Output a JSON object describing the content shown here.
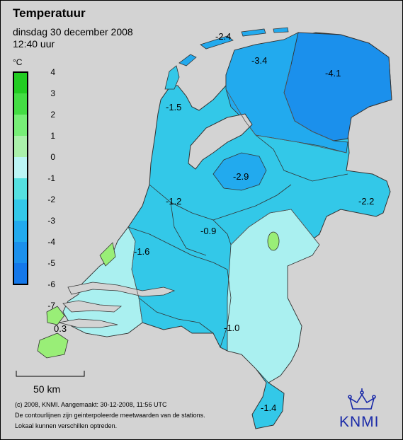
{
  "header": {
    "title": "Temperatuur",
    "date": "dinsdag 30 december 2008",
    "time": "12:40 uur"
  },
  "legend": {
    "unit": "°C",
    "ticks": [
      "4",
      "3",
      "2",
      "1",
      "0",
      "-1",
      "-2",
      "-3",
      "-4",
      "-5",
      "-6",
      "-7"
    ],
    "colors": [
      "#22cc22",
      "#44dd44",
      "#77ee77",
      "#aaf0aa",
      "#bbf5f5",
      "#55e0e0",
      "#33c8e8",
      "#22aaee",
      "#1b90ec",
      "#1478ea"
    ]
  },
  "labels": [
    {
      "text": "-2.4"
    },
    {
      "text": "-3.4"
    },
    {
      "text": "-4.1"
    },
    {
      "text": "-1.5"
    },
    {
      "text": "-2.9"
    },
    {
      "text": "-2.2"
    },
    {
      "text": "-1.2"
    },
    {
      "text": "-0.9"
    },
    {
      "text": "-1.6"
    },
    {
      "text": "-1.0"
    },
    {
      "text": "0.3"
    },
    {
      "text": "-1.4"
    }
  ],
  "scalebar": {
    "label": "50 km"
  },
  "footer": {
    "line1": "(c) 2008, KNMI. Aangemaakt: 30-12-2008, 11:56 UTC",
    "line2": "De contourlijnen zijn geinterpoleerde meetwaarden van de stations.",
    "line3": "Lokaal kunnen verschillen optreden."
  },
  "logo": {
    "text": "KNMI"
  },
  "colors": {
    "sea": "#d3d3d3",
    "land_mid": "#33c8e8",
    "land_cold": "#1b90ec",
    "land_light": "#aaf0f0",
    "land_green": "#99ee77",
    "water": "#d3d3d3"
  }
}
